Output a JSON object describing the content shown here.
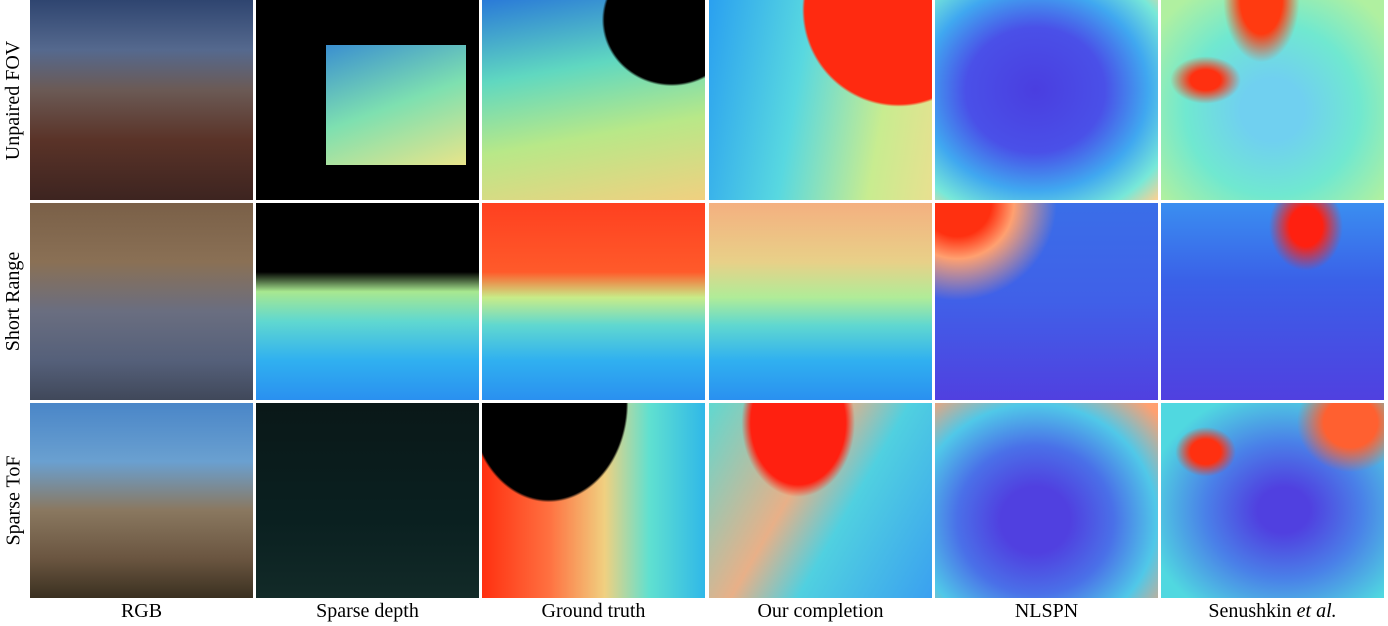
{
  "figure": {
    "row_labels": [
      "Unpaired FOV",
      "Short Range",
      "Sparse ToF"
    ],
    "column_labels": [
      "RGB",
      "Sparse depth",
      "Ground truth",
      "Our completion",
      "NLSPN",
      {
        "text": "Senushkin",
        "italic": "et al."
      }
    ]
  }
}
